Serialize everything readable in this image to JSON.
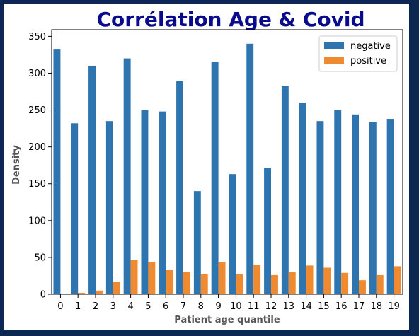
{
  "chart_data": {
    "type": "bar",
    "title": "Corrélation Age & Covid",
    "xlabel": "Patient age quantile",
    "ylabel": "Density",
    "categories": [
      "0",
      "1",
      "2",
      "3",
      "4",
      "5",
      "6",
      "7",
      "8",
      "9",
      "10",
      "11",
      "12",
      "13",
      "14",
      "15",
      "16",
      "17",
      "18",
      "19"
    ],
    "series": [
      {
        "name": "negative",
        "color": "#2e75b0",
        "values": [
          333,
          232,
          310,
          235,
          320,
          250,
          248,
          289,
          140,
          315,
          163,
          340,
          171,
          283,
          260,
          235,
          250,
          244,
          234,
          238
        ]
      },
      {
        "name": "positive",
        "color": "#ef8a30",
        "values": [
          1,
          2,
          5,
          17,
          47,
          44,
          33,
          30,
          27,
          44,
          27,
          40,
          26,
          30,
          39,
          36,
          29,
          19,
          26,
          38
        ]
      }
    ],
    "ylim": [
      0,
      359
    ],
    "yticks": [
      0,
      50,
      100,
      150,
      200,
      250,
      300,
      350
    ],
    "legend_position": "top-right",
    "grid": false
  }
}
